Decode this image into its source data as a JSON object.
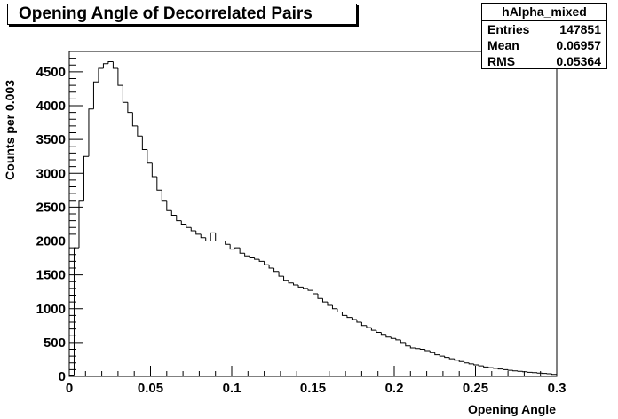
{
  "chart_data": {
    "type": "bar",
    "title": "Opening Angle of Decorrelated Pairs",
    "xlabel": "Opening Angle",
    "ylabel": "Counts per 0.003",
    "xlim": [
      0,
      0.3
    ],
    "ylim": [
      0,
      4800
    ],
    "bin_width": 0.003,
    "x_ticks": [
      0,
      0.05,
      0.1,
      0.15,
      0.2,
      0.25,
      0.3
    ],
    "x_tick_labels": [
      "0",
      "0.05",
      "0.1",
      "0.15",
      "0.2",
      "0.25",
      "0.3"
    ],
    "y_ticks": [
      0,
      500,
      1000,
      1500,
      2000,
      2500,
      3000,
      3500,
      4000,
      4500
    ],
    "y_tick_labels": [
      "0",
      "500",
      "1000",
      "1500",
      "2000",
      "2500",
      "3000",
      "3500",
      "4000",
      "4500"
    ],
    "values": [
      20,
      1900,
      2600,
      3250,
      3950,
      4350,
      4550,
      4620,
      4650,
      4550,
      4300,
      4050,
      3900,
      3700,
      3550,
      3350,
      3150,
      2950,
      2750,
      2600,
      2450,
      2380,
      2300,
      2250,
      2200,
      2150,
      2100,
      2050,
      2000,
      2120,
      2000,
      2000,
      1950,
      1880,
      1900,
      1820,
      1780,
      1750,
      1730,
      1700,
      1650,
      1600,
      1550,
      1480,
      1420,
      1380,
      1350,
      1320,
      1300,
      1270,
      1220,
      1150,
      1100,
      1050,
      1000,
      950,
      900,
      870,
      840,
      800,
      750,
      720,
      680,
      650,
      620,
      580,
      560,
      540,
      500,
      450,
      420,
      410,
      400,
      380,
      350,
      320,
      300,
      280,
      260,
      240,
      220,
      200,
      185,
      170,
      155,
      140,
      130,
      120,
      110,
      100,
      90,
      82,
      75,
      68,
      60,
      55,
      50,
      45,
      40,
      30
    ]
  },
  "stats": {
    "name": "hAlpha_mixed",
    "rows": [
      {
        "label": "Entries",
        "value": "147851"
      },
      {
        "label": "Mean",
        "value": "0.06957"
      },
      {
        "label": "RMS",
        "value": "0.05364"
      }
    ]
  }
}
